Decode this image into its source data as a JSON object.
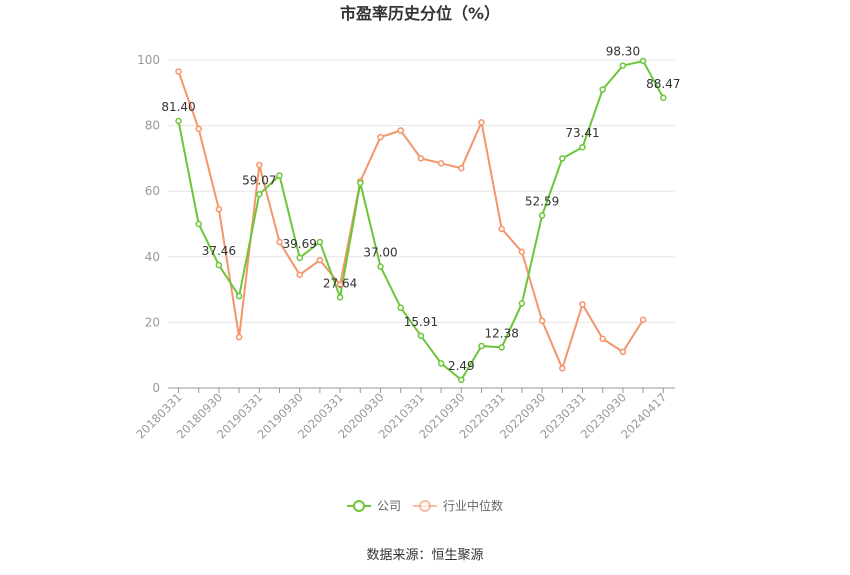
{
  "chart_data": {
    "type": "line",
    "title": "市盈率历史分位（%）",
    "source": "数据来源：恒生聚源",
    "ylim": [
      0,
      100
    ],
    "yticks": [
      0,
      20,
      40,
      60,
      80,
      100
    ],
    "grid": true,
    "legend_position": "bottom",
    "x": [
      "20180331",
      "20180630",
      "20180930",
      "20181231",
      "20190331",
      "20190630",
      "20190930",
      "20191231",
      "20200331",
      "20200630",
      "20200930",
      "20201231",
      "20210331",
      "20210630",
      "20210930",
      "20211231",
      "20220331",
      "20220630",
      "20220930",
      "20221231",
      "20230331",
      "20230630",
      "20230930",
      "20231231",
      "20240417"
    ],
    "xtick_labels": [
      "20180331",
      "20180930",
      "20190331",
      "20190930",
      "20200331",
      "20200930",
      "20210331",
      "20210930",
      "20220331",
      "20220930",
      "20230331",
      "20230930",
      "20240417"
    ],
    "series": [
      {
        "name": "公司",
        "color": "#6bc63a",
        "values": [
          81.4,
          50.0,
          37.46,
          28.0,
          59.07,
          64.8,
          39.69,
          44.5,
          27.64,
          62.5,
          37.0,
          24.5,
          15.91,
          7.5,
          2.49,
          12.8,
          12.38,
          25.8,
          52.59,
          70.0,
          73.41,
          91.0,
          98.3,
          99.7,
          88.47
        ],
        "labels": [
          "81.40",
          null,
          "37.46",
          null,
          "59.07",
          null,
          "39.69",
          null,
          "27.64",
          null,
          "37.00",
          null,
          "15.91",
          null,
          "2.49",
          null,
          "12.38",
          null,
          "52.59",
          null,
          "73.41",
          null,
          "98.30",
          null,
          "88.47"
        ]
      },
      {
        "name": "行业中位数",
        "color": "#f4956a",
        "values": [
          96.5,
          79.0,
          54.5,
          15.5,
          68.0,
          44.5,
          34.5,
          39.0,
          31.5,
          63.0,
          76.5,
          78.5,
          70.0,
          68.5,
          67.0,
          81.0,
          48.5,
          41.5,
          20.5,
          6.0,
          25.5,
          15.0,
          11.0,
          20.8,
          null
        ]
      }
    ]
  }
}
